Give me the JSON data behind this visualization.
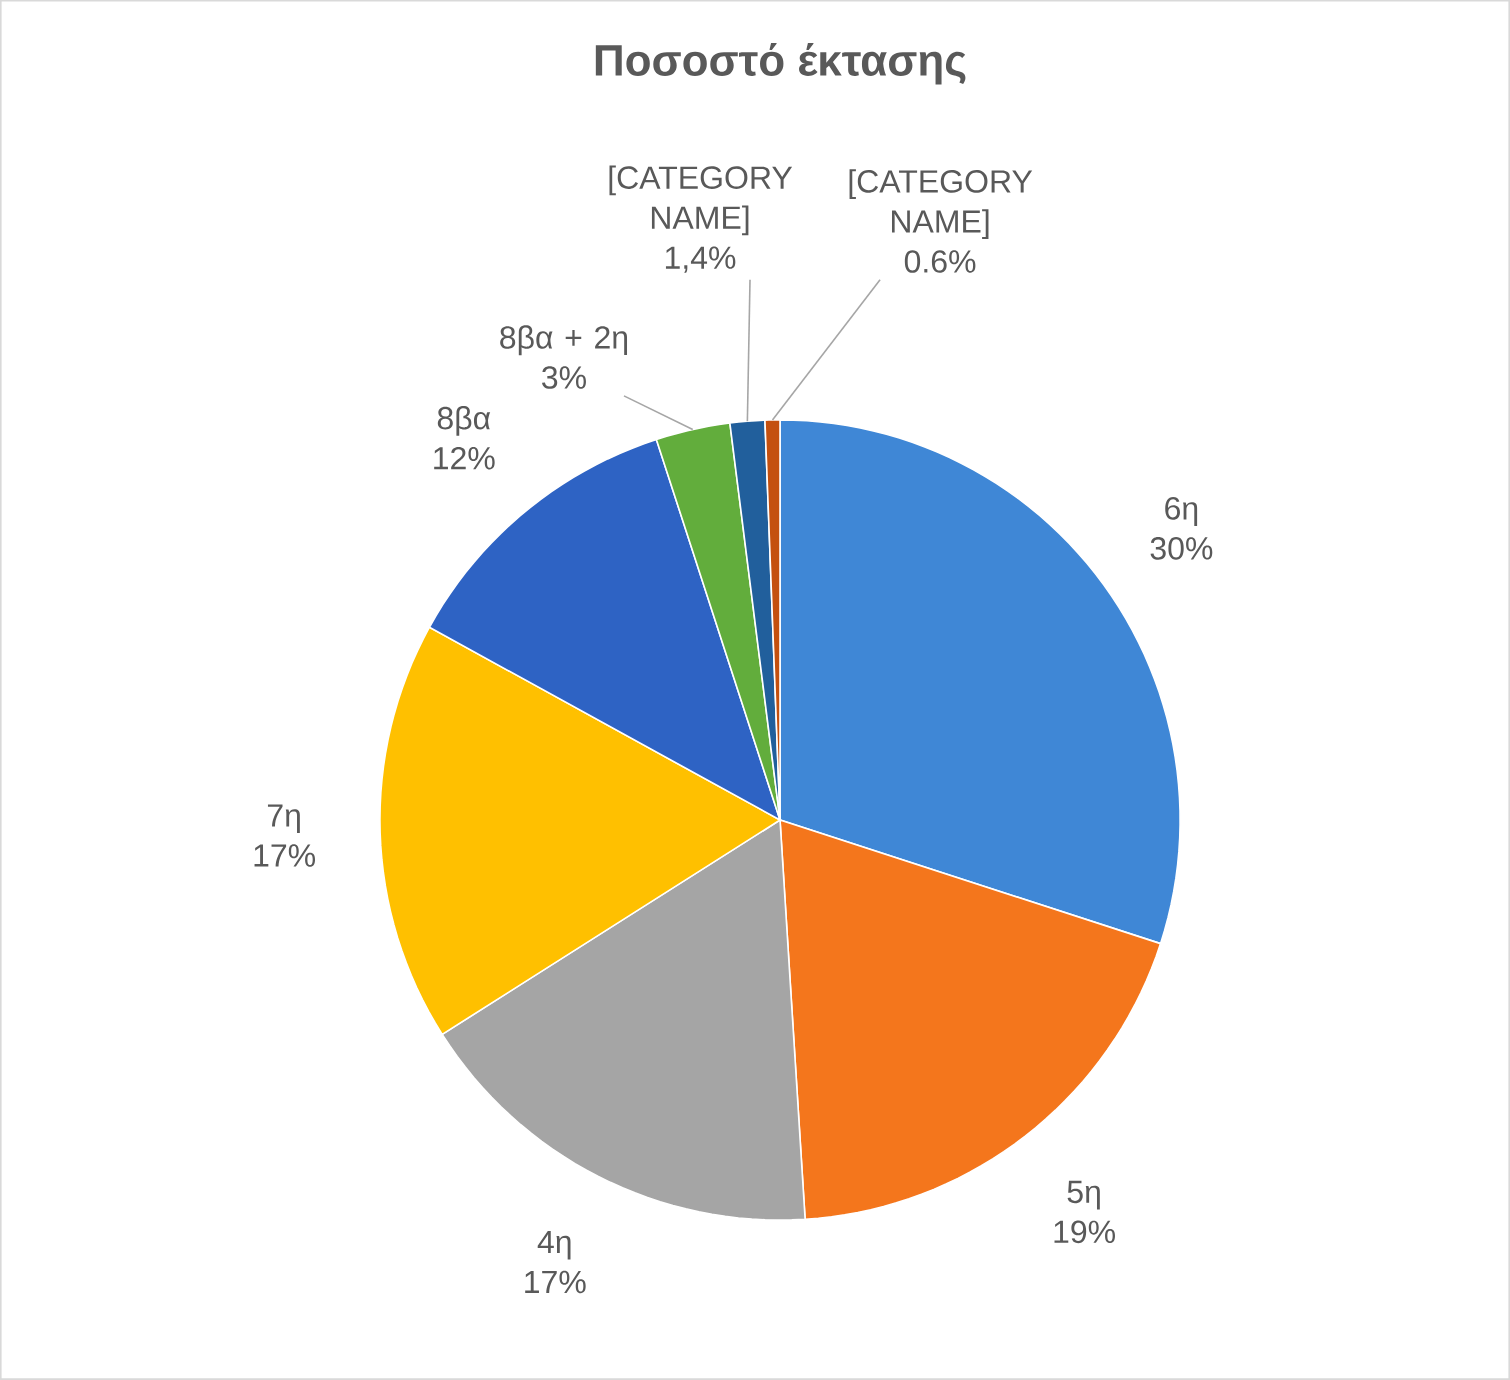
{
  "chart_data": {
    "type": "pie",
    "title": "Ποσοστό έκτασης",
    "categories": [
      "6η",
      "5η",
      "4η",
      "7η",
      "8βα",
      "8βα + 2η",
      "[CATEGORY NAME]",
      "[CATEGORY NAME]"
    ],
    "values": [
      30,
      19,
      17,
      17,
      12,
      3,
      1.4,
      0.6
    ],
    "value_labels": [
      "30%",
      "19%",
      "17%",
      "17%",
      "12%",
      "3%",
      "1,4%",
      "0.6%"
    ],
    "colors": [
      "#3f87d6",
      "#f4761c",
      "#a5a5a5",
      "#ffc000",
      "#2e63c4",
      "#62ad3c",
      "#215f9c",
      "#c4500f"
    ],
    "legend": false
  }
}
